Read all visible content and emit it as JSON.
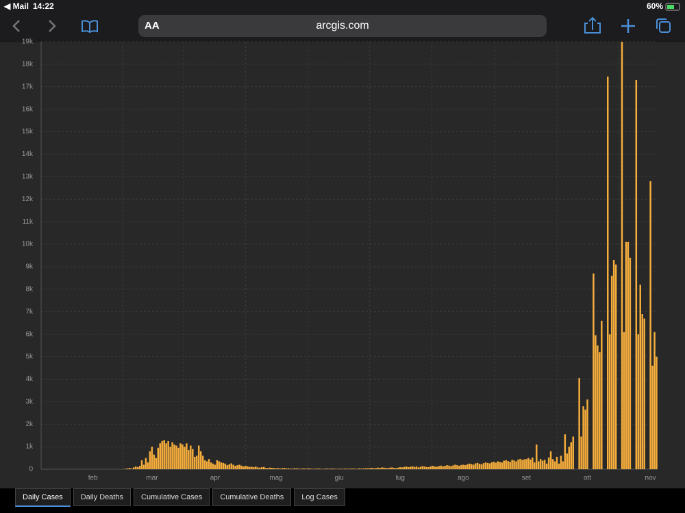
{
  "status_bar": {
    "app": "Mail",
    "time": "14:22",
    "battery": "60%"
  },
  "browser": {
    "text_size": "AA",
    "url": "arcgis.com"
  },
  "chart_data": {
    "type": "bar",
    "color": "#f5ad3c",
    "grid": true,
    "ylim": [
      0,
      19000
    ],
    "yticks": [
      0,
      {
        "value": 1000,
        "label": "1k"
      },
      {
        "value": 2000,
        "label": "2k"
      },
      {
        "value": 3000,
        "label": "3k"
      },
      {
        "value": 4000,
        "label": "4k"
      },
      {
        "value": 5000,
        "label": "5k"
      },
      {
        "value": 6000,
        "label": "6k"
      },
      {
        "value": 7000,
        "label": "7k"
      },
      {
        "value": 8000,
        "label": "8k"
      },
      {
        "value": 9000,
        "label": "9k"
      },
      {
        "value": 10000,
        "label": "10k"
      },
      {
        "value": 11000,
        "label": "11k"
      },
      {
        "value": 12000,
        "label": "12k"
      },
      {
        "value": 13000,
        "label": "13k"
      },
      {
        "value": 14000,
        "label": "14k"
      },
      {
        "value": 15000,
        "label": "15k"
      },
      {
        "value": 16000,
        "label": "16k"
      },
      {
        "value": 17000,
        "label": "17k"
      },
      {
        "value": 18000,
        "label": "18k"
      },
      {
        "value": 19000,
        "label": "19k"
      }
    ],
    "categories": [
      null,
      null,
      null,
      null,
      null,
      null,
      null,
      null,
      null,
      null,
      null,
      null,
      null,
      null,
      null,
      null,
      null,
      null,
      null,
      null,
      null,
      null,
      null,
      null,
      null,
      "feb",
      null,
      null,
      null,
      null,
      null,
      null,
      null,
      null,
      null,
      null,
      null,
      null,
      null,
      null,
      null,
      null,
      null,
      null,
      null,
      null,
      null,
      null,
      null,
      null,
      null,
      null,
      null,
      null,
      "mar",
      null,
      null,
      null,
      null,
      null,
      null,
      null,
      null,
      null,
      null,
      null,
      null,
      null,
      null,
      null,
      null,
      null,
      null,
      null,
      null,
      null,
      null,
      null,
      null,
      null,
      null,
      null,
      null,
      null,
      null,
      "apr",
      null,
      null,
      null,
      null,
      null,
      null,
      null,
      null,
      null,
      null,
      null,
      null,
      null,
      null,
      null,
      null,
      null,
      null,
      null,
      null,
      null,
      null,
      null,
      null,
      null,
      null,
      null,
      null,
      null,
      "mag",
      null,
      null,
      null,
      null,
      null,
      null,
      null,
      null,
      null,
      null,
      null,
      null,
      null,
      null,
      null,
      null,
      null,
      null,
      null,
      null,
      null,
      null,
      null,
      null,
      null,
      null,
      null,
      null,
      null,
      null,
      "giu",
      null,
      null,
      null,
      null,
      null,
      null,
      null,
      null,
      null,
      null,
      null,
      null,
      null,
      null,
      null,
      null,
      null,
      null,
      null,
      null,
      null,
      null,
      null,
      null,
      null,
      null,
      null,
      null,
      null,
      "lug",
      null,
      null,
      null,
      null,
      null,
      null,
      null,
      null,
      null,
      null,
      null,
      null,
      null,
      null,
      null,
      null,
      null,
      null,
      null,
      null,
      null,
      null,
      null,
      null,
      null,
      null,
      null,
      null,
      null,
      null,
      "ago",
      null,
      null,
      null,
      null,
      null,
      null,
      null,
      null,
      null,
      null,
      null,
      null,
      null,
      null,
      null,
      null,
      null,
      null,
      null,
      null,
      null,
      null,
      null,
      null,
      null,
      null,
      null,
      null,
      null,
      null,
      "set",
      null,
      null,
      null,
      null,
      null,
      null,
      null,
      null,
      null,
      null,
      null,
      null,
      null,
      null,
      null,
      null,
      null,
      null,
      null,
      null,
      null,
      null,
      null,
      null,
      null,
      null,
      null,
      null,
      null,
      "ott",
      null,
      null,
      null,
      null,
      null,
      null,
      null,
      null,
      null,
      null,
      null,
      null,
      null,
      null,
      null,
      null,
      null,
      null,
      null,
      null,
      null,
      null,
      null,
      null,
      null,
      null,
      null,
      null,
      null,
      null,
      "nov",
      null,
      null,
      null
    ],
    "values": [
      0,
      0,
      0,
      0,
      0,
      0,
      0,
      0,
      0,
      0,
      0,
      0,
      0,
      0,
      0,
      0,
      0,
      0,
      0,
      0,
      0,
      0,
      0,
      0,
      0,
      0,
      0,
      0,
      0,
      0,
      0,
      0,
      0,
      0,
      0,
      0,
      0,
      0,
      0,
      0,
      10,
      20,
      40,
      60,
      30,
      80,
      120,
      90,
      150,
      400,
      200,
      500,
      300,
      800,
      1000,
      650,
      500,
      950,
      1150,
      1250,
      1300,
      1150,
      1250,
      1000,
      1200,
      1100,
      1050,
      950,
      1150,
      1100,
      1000,
      1150,
      850,
      1050,
      900,
      550,
      600,
      1050,
      800,
      600,
      400,
      350,
      450,
      300,
      250,
      200,
      400,
      350,
      300,
      280,
      250,
      180,
      220,
      260,
      200,
      150,
      180,
      200,
      160,
      120,
      150,
      130,
      100,
      110,
      90,
      120,
      80,
      70,
      90,
      100,
      60,
      50,
      70,
      60,
      50,
      40,
      50,
      30,
      45,
      60,
      35,
      40,
      30,
      25,
      45,
      40,
      30,
      20,
      35,
      30,
      25,
      40,
      30,
      20,
      25,
      30,
      35,
      20,
      15,
      25,
      30,
      20,
      25,
      30,
      20,
      15,
      20,
      25,
      15,
      30,
      20,
      25,
      30,
      35,
      20,
      25,
      40,
      30,
      35,
      45,
      40,
      50,
      60,
      40,
      50,
      70,
      60,
      80,
      70,
      60,
      50,
      70,
      80,
      60,
      50,
      70,
      90,
      80,
      100,
      120,
      90,
      110,
      130,
      100,
      120,
      80,
      110,
      140,
      120,
      100,
      90,
      130,
      150,
      120,
      110,
      140,
      160,
      130,
      150,
      180,
      160,
      140,
      170,
      200,
      180,
      150,
      190,
      200,
      180,
      220,
      250,
      230,
      200,
      260,
      280,
      240,
      220,
      270,
      300,
      280,
      260,
      310,
      330,
      290,
      350,
      320,
      300,
      380,
      400,
      360,
      330,
      420,
      390,
      350,
      430,
      460,
      410,
      440,
      450,
      500,
      430,
      520,
      300,
      1100,
      350,
      450,
      380,
      420,
      250,
      520,
      800,
      450,
      350,
      550,
      250,
      600,
      350,
      1550,
      700,
      1000,
      1200,
      1450,
      null,
      null,
      4050,
      1450,
      2800,
      2650,
      3100,
      null,
      null,
      8700,
      5950,
      5500,
      5200,
      6600,
      null,
      null,
      17450,
      6000,
      8600,
      9300,
      9100,
      null,
      null,
      19000,
      6100,
      10100,
      10100,
      9400,
      null,
      null,
      17300,
      6000,
      8200,
      6900,
      6700,
      null,
      null,
      12800,
      4600,
      6100,
      5000
    ]
  },
  "tabs": [
    "Daily Cases",
    "Daily Deaths",
    "Cumulative Cases",
    "Cumulative Deaths",
    "Log Cases"
  ]
}
